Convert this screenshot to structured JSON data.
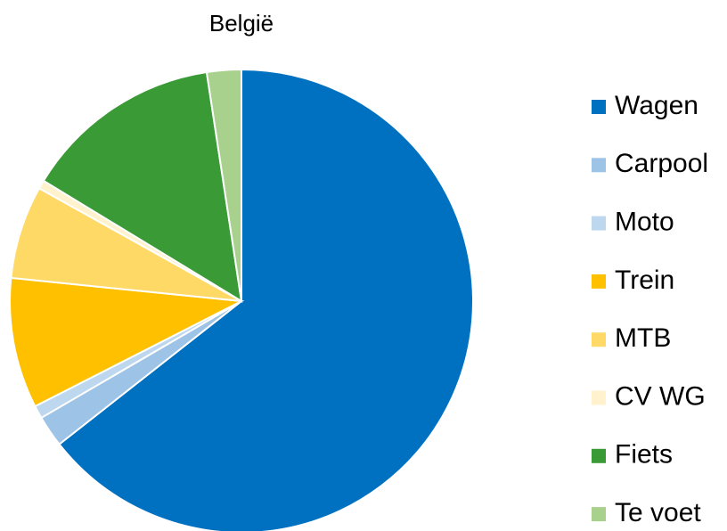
{
  "chart_data": {
    "type": "pie",
    "title": "België",
    "categories": [
      "Wagen",
      "Carpool",
      "Moto",
      "Trein",
      "MTB",
      "CV WG",
      "Fiets",
      "Te voet"
    ],
    "values": [
      64.4,
      2.2,
      0.9,
      9.1,
      6.5,
      0.6,
      13.9,
      2.4
    ],
    "colors": [
      "#0070c0",
      "#9dc3e6",
      "#bdd7ee",
      "#ffc000",
      "#ffd966",
      "#fff2cc",
      "#3a9a35",
      "#a9d18e"
    ],
    "legend": "right"
  }
}
